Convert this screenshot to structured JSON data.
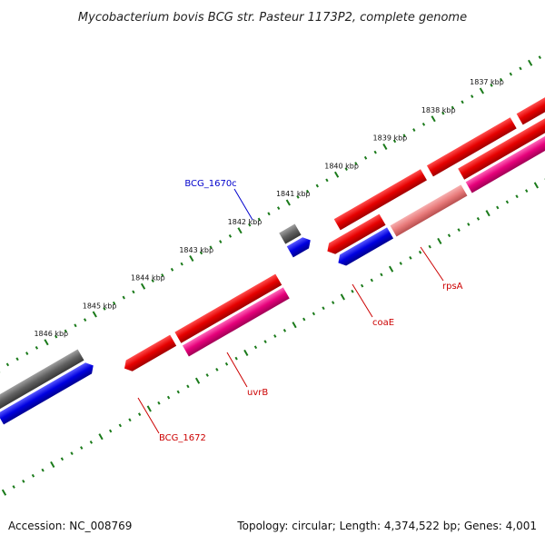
{
  "title": "Mycobacterium bovis BCG str. Pasteur 1173P2, complete genome",
  "footer": {
    "accession_label": "Accession:",
    "accession": "NC_008769",
    "topology_label": "Topology:",
    "topology": "circular",
    "length_label": "Length:",
    "length": "4,374,522 bp",
    "genes_label": "Genes:",
    "genes": "4,001"
  },
  "scale": {
    "ticks": [
      "1837 kbp",
      "1838 kbp",
      "1839 kbp",
      "1840 kbp",
      "1841 kbp",
      "1842 kbp",
      "1843 kbp",
      "1844 kbp",
      "1845 kbp",
      "1846 kbp"
    ]
  },
  "gene_labels": [
    {
      "text": "BCG_1670c",
      "color": "#0000cc"
    },
    {
      "text": "rpsA",
      "color": "#cc0000"
    },
    {
      "text": "coaE",
      "color": "#cc0000"
    },
    {
      "text": "uvrB",
      "color": "#cc0000"
    },
    {
      "text": "BCG_1672",
      "color": "#cc0000"
    }
  ],
  "colors": {
    "backbone": "#8c8c8c",
    "tick": "#1a7a1a",
    "cds_red": "#e60000",
    "cds_pink": "#e6007a",
    "cds_lightred": "#e87a7a",
    "cds_blue": "#0000e0",
    "cds_gray": "#606060"
  }
}
